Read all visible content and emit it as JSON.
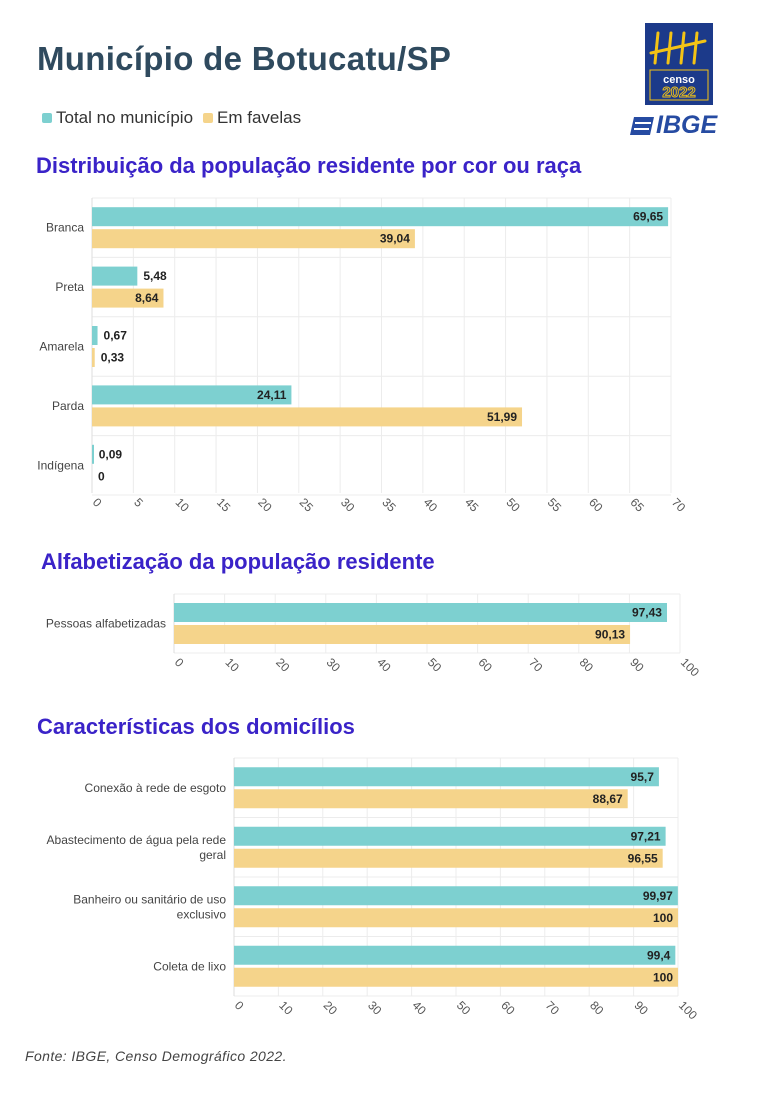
{
  "header": {
    "title": "Município de Botucatu/SP",
    "legend": [
      {
        "label": "Total no município",
        "color": "#7dd0d0"
      },
      {
        "label": "Em favelas",
        "color": "#f5d48b"
      }
    ],
    "logo": {
      "line1": "censo",
      "line2": "2022",
      "brand": "IBGE"
    }
  },
  "colors": {
    "total": "#7dd0d0",
    "favelas": "#f5d48b",
    "section_title": "#3a23c8"
  },
  "chart_data": [
    {
      "type": "bar",
      "orientation": "horizontal",
      "title": "Distribuição da população residente por cor ou raça",
      "categories": [
        "Branca",
        "Preta",
        "Amarela",
        "Parda",
        "Indígena"
      ],
      "series": [
        {
          "name": "Total no município",
          "values": [
            69.65,
            5.48,
            0.67,
            24.11,
            0.09
          ],
          "labels": [
            "69,65",
            "5,48",
            "0,67",
            "24,11",
            "0,09"
          ]
        },
        {
          "name": "Em favelas",
          "values": [
            39.04,
            8.64,
            0.33,
            51.99,
            0
          ],
          "labels": [
            "39,04",
            "8,64",
            "0,33",
            "51,99",
            "0"
          ]
        }
      ],
      "xlim": [
        0,
        70
      ],
      "ticks": [
        0,
        5,
        10,
        15,
        20,
        25,
        30,
        35,
        40,
        45,
        50,
        55,
        60,
        65,
        70
      ],
      "grid": true
    },
    {
      "type": "bar",
      "orientation": "horizontal",
      "title": "Alfabetização da população residente",
      "categories": [
        "Pessoas alfabetizadas"
      ],
      "series": [
        {
          "name": "Total no município",
          "values": [
            97.43
          ],
          "labels": [
            "97,43"
          ]
        },
        {
          "name": "Em favelas",
          "values": [
            90.13
          ],
          "labels": [
            "90,13"
          ]
        }
      ],
      "xlim": [
        0,
        100
      ],
      "ticks": [
        0,
        10,
        20,
        30,
        40,
        50,
        60,
        70,
        80,
        90,
        100
      ],
      "grid": true
    },
    {
      "type": "bar",
      "orientation": "horizontal",
      "title": "Características dos domicílios",
      "categories": [
        "Conexão à rede de esgoto",
        "Abastecimento de água pela rede geral",
        "Banheiro ou sanitário de uso exclusivo",
        "Coleta de lixo"
      ],
      "category_lines": [
        [
          "Conexão à rede de esgoto"
        ],
        [
          "Abastecimento de água pela rede",
          "geral"
        ],
        [
          "Banheiro ou sanitário de uso",
          "exclusivo"
        ],
        [
          "Coleta de lixo"
        ]
      ],
      "series": [
        {
          "name": "Total no município",
          "values": [
            95.7,
            97.21,
            99.97,
            99.4
          ],
          "labels": [
            "95,7",
            "97,21",
            "99,97",
            "99,4"
          ]
        },
        {
          "name": "Em favelas",
          "values": [
            88.67,
            96.55,
            100,
            100
          ],
          "labels": [
            "88,67",
            "96,55",
            "100",
            "100"
          ]
        }
      ],
      "xlim": [
        0,
        100
      ],
      "ticks": [
        0,
        10,
        20,
        30,
        40,
        50,
        60,
        70,
        80,
        90,
        100
      ],
      "grid": true
    }
  ],
  "footer": {
    "source": "Fonte: IBGE, Censo Demográfico 2022."
  }
}
